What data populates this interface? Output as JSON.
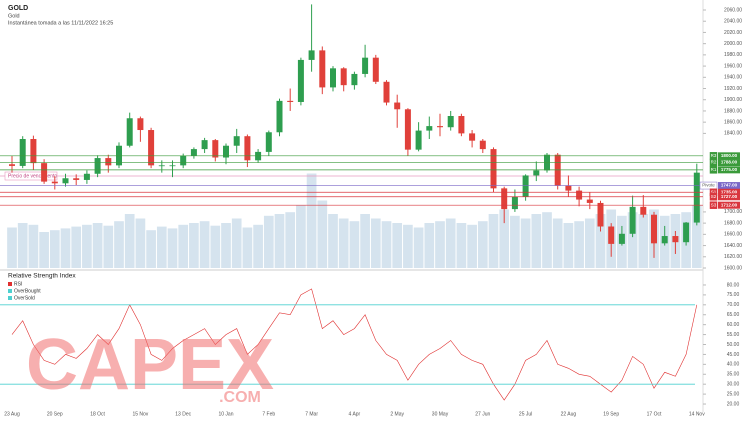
{
  "header": {
    "symbol": "GOLD",
    "name": "Gold",
    "snapshot": "Instantánea tomada a las 11/11/2022 16:25"
  },
  "watermark": {
    "text": "CAPEX",
    "sub": ".COM"
  },
  "chart_data": [
    {
      "type": "candlestick",
      "categories": [
        "23 Aug",
        null,
        null,
        null,
        "20 Sep",
        null,
        null,
        null,
        "18 Oct",
        null,
        null,
        null,
        "15 Nov",
        null,
        null,
        null,
        "13 Dec",
        null,
        null,
        null,
        "10 Jan",
        null,
        null,
        null,
        "7 Feb",
        null,
        null,
        null,
        "7 Mar",
        null,
        null,
        null,
        "4 Apr",
        null,
        null,
        null,
        "2 May",
        null,
        null,
        null,
        "30 May",
        null,
        null,
        null,
        "27 Jun",
        null,
        null,
        null,
        "25 Jul",
        null,
        null,
        null,
        "22 Aug",
        null,
        null,
        null,
        "19 Sep",
        null,
        null,
        null,
        "17 Oct",
        null,
        null,
        null,
        "14 Nov"
      ],
      "open": [
        1785,
        1782,
        1830,
        1787,
        1754,
        1751,
        1760,
        1757,
        1768,
        1796,
        1783,
        1818,
        1867,
        1846,
        1783,
        1783,
        1783,
        1800,
        1812,
        1828,
        1797,
        1818,
        1835,
        1792,
        1807,
        1842,
        1898,
        1896,
        1971,
        1988,
        1922,
        1956,
        1926,
        1946,
        1975,
        1932,
        1895,
        1883,
        1811,
        1845,
        1853,
        1851,
        1871,
        1840,
        1827,
        1812,
        1742,
        1705,
        1727,
        1765,
        1774,
        1802,
        1747,
        1738,
        1722,
        1716,
        1674,
        1643,
        1661,
        1709,
        1695,
        1644,
        1657,
        1646,
        1681
      ],
      "high": [
        1800,
        1835,
        1836,
        1794,
        1764,
        1768,
        1767,
        1774,
        1801,
        1802,
        1824,
        1877,
        1870,
        1850,
        1792,
        1792,
        1804,
        1815,
        1832,
        1830,
        1822,
        1848,
        1838,
        1812,
        1845,
        1902,
        1920,
        1975,
        2070,
        1995,
        1960,
        1958,
        1950,
        1998,
        1980,
        1935,
        1909,
        1885,
        1860,
        1870,
        1875,
        1880,
        1875,
        1846,
        1830,
        1815,
        1745,
        1740,
        1767,
        1790,
        1805,
        1805,
        1765,
        1745,
        1735,
        1720,
        1680,
        1675,
        1729,
        1730,
        1700,
        1675,
        1666,
        1682,
        1786
      ],
      "low": [
        1770,
        1778,
        1775,
        1750,
        1740,
        1745,
        1748,
        1750,
        1762,
        1770,
        1778,
        1815,
        1825,
        1778,
        1770,
        1762,
        1778,
        1795,
        1805,
        1790,
        1785,
        1805,
        1780,
        1788,
        1800,
        1835,
        1880,
        1890,
        1950,
        1910,
        1915,
        1915,
        1918,
        1940,
        1928,
        1890,
        1850,
        1800,
        1808,
        1830,
        1835,
        1845,
        1835,
        1815,
        1805,
        1735,
        1680,
        1700,
        1720,
        1755,
        1770,
        1740,
        1727,
        1710,
        1705,
        1665,
        1620,
        1640,
        1655,
        1690,
        1618,
        1640,
        1625,
        1640,
        1676
      ],
      "close": [
        1782,
        1830,
        1787,
        1754,
        1751,
        1760,
        1757,
        1768,
        1796,
        1783,
        1818,
        1867,
        1846,
        1783,
        1783,
        1783,
        1800,
        1812,
        1828,
        1797,
        1818,
        1835,
        1792,
        1807,
        1842,
        1898,
        1896,
        1971,
        1988,
        1922,
        1956,
        1926,
        1946,
        1975,
        1932,
        1895,
        1883,
        1811,
        1845,
        1853,
        1851,
        1871,
        1840,
        1827,
        1812,
        1742,
        1705,
        1727,
        1765,
        1774,
        1802,
        1747,
        1738,
        1722,
        1716,
        1674,
        1643,
        1661,
        1709,
        1695,
        1644,
        1657,
        1646,
        1681,
        1770
      ],
      "volume": [
        45,
        50,
        48,
        40,
        42,
        44,
        46,
        48,
        50,
        47,
        52,
        60,
        55,
        42,
        46,
        44,
        48,
        50,
        52,
        47,
        50,
        55,
        45,
        48,
        58,
        60,
        62,
        70,
        105,
        75,
        60,
        55,
        52,
        60,
        55,
        52,
        50,
        48,
        45,
        50,
        52,
        55,
        50,
        48,
        52,
        60,
        65,
        58,
        55,
        60,
        62,
        55,
        50,
        52,
        55,
        60,
        65,
        58,
        62,
        60,
        65,
        58,
        60,
        62,
        70
      ],
      "up_color": "#2e9e4f",
      "down_color": "#e0403a",
      "volume_color": "#d5e3ee",
      "ylim": [
        1600,
        2060
      ],
      "yticks": [
        {
          "value": 1600,
          "label": "1600.00"
        },
        {
          "value": 1620,
          "label": "1620.00"
        },
        {
          "value": 1640,
          "label": "1640.00"
        },
        {
          "value": 1660,
          "label": "1660.00"
        },
        {
          "value": 1680,
          "label": "1680.00"
        },
        {
          "value": 1700,
          "label": "1700.00"
        },
        {
          "value": 1840,
          "label": "1840.00"
        },
        {
          "value": 1860,
          "label": "1860.00"
        },
        {
          "value": 1880,
          "label": "1880.00"
        },
        {
          "value": 1900,
          "label": "1900.00"
        },
        {
          "value": 1920,
          "label": "1920.00"
        },
        {
          "value": 1940,
          "label": "1940.00"
        },
        {
          "value": 1960,
          "label": "1960.00"
        },
        {
          "value": 1980,
          "label": "1980.00"
        },
        {
          "value": 2000,
          "label": "2000.00"
        },
        {
          "value": 2020,
          "label": "2020.00"
        },
        {
          "value": 2040,
          "label": "2040.00"
        },
        {
          "value": 2060,
          "label": "2060.00"
        }
      ],
      "levels": [
        {
          "name": "R3",
          "value": 1800,
          "label": "1800.00",
          "color": "#3a9a3a"
        },
        {
          "name": "R2",
          "value": 1788,
          "label": "1788.00",
          "color": "#3a9a3a"
        },
        {
          "name": "R1",
          "value": 1775,
          "label": "1775.00",
          "color": "#3a9a3a"
        },
        {
          "name": "Pivote",
          "value": 1747,
          "label": "1747.00",
          "color": "#7b68c8"
        },
        {
          "name": "S1",
          "value": 1735,
          "label": "1735.00",
          "color": "#d9363e"
        },
        {
          "name": "S2",
          "value": 1727,
          "label": "1727.00",
          "color": "#d9363e"
        },
        {
          "name": "S3",
          "value": 1712,
          "label": "1712.00",
          "color": "#d9363e"
        }
      ],
      "annotation": {
        "text": "Precio de vencimiento",
        "value": 1764,
        "color": "#e79bc0"
      }
    },
    {
      "type": "line",
      "title": "Relative Strength Index",
      "series": [
        {
          "name": "RSI",
          "color": "#e03030",
          "values": [
            55,
            62,
            50,
            42,
            40,
            45,
            43,
            48,
            55,
            50,
            58,
            70,
            60,
            45,
            42,
            48,
            52,
            55,
            58,
            50,
            55,
            58,
            45,
            50,
            58,
            66,
            65,
            75,
            78,
            58,
            62,
            55,
            58,
            65,
            52,
            45,
            42,
            32,
            40,
            45,
            48,
            52,
            45,
            42,
            40,
            30,
            22,
            30,
            42,
            45,
            52,
            40,
            38,
            35,
            34,
            30,
            26,
            32,
            44,
            40,
            28,
            36,
            34,
            45,
            70
          ]
        },
        {
          "name": "OverBought",
          "color": "#4dd0d0",
          "value": 70
        },
        {
          "name": "OverSold",
          "color": "#4dd0d0",
          "value": 30
        }
      ],
      "ylim": [
        18,
        82
      ],
      "yticks": [
        {
          "value": 20,
          "label": "20.00"
        },
        {
          "value": 25,
          "label": "25.00"
        },
        {
          "value": 30,
          "label": "30.00"
        },
        {
          "value": 35,
          "label": "35.00"
        },
        {
          "value": 40,
          "label": "40.00"
        },
        {
          "value": 45,
          "label": "45.00"
        },
        {
          "value": 50,
          "label": "50.00"
        },
        {
          "value": 55,
          "label": "55.00"
        },
        {
          "value": 60,
          "label": "60.00"
        },
        {
          "value": 65,
          "label": "65.00"
        },
        {
          "value": 70,
          "label": "70.00"
        },
        {
          "value": 75,
          "label": "75.00"
        },
        {
          "value": 80,
          "label": "80.00"
        }
      ]
    }
  ]
}
